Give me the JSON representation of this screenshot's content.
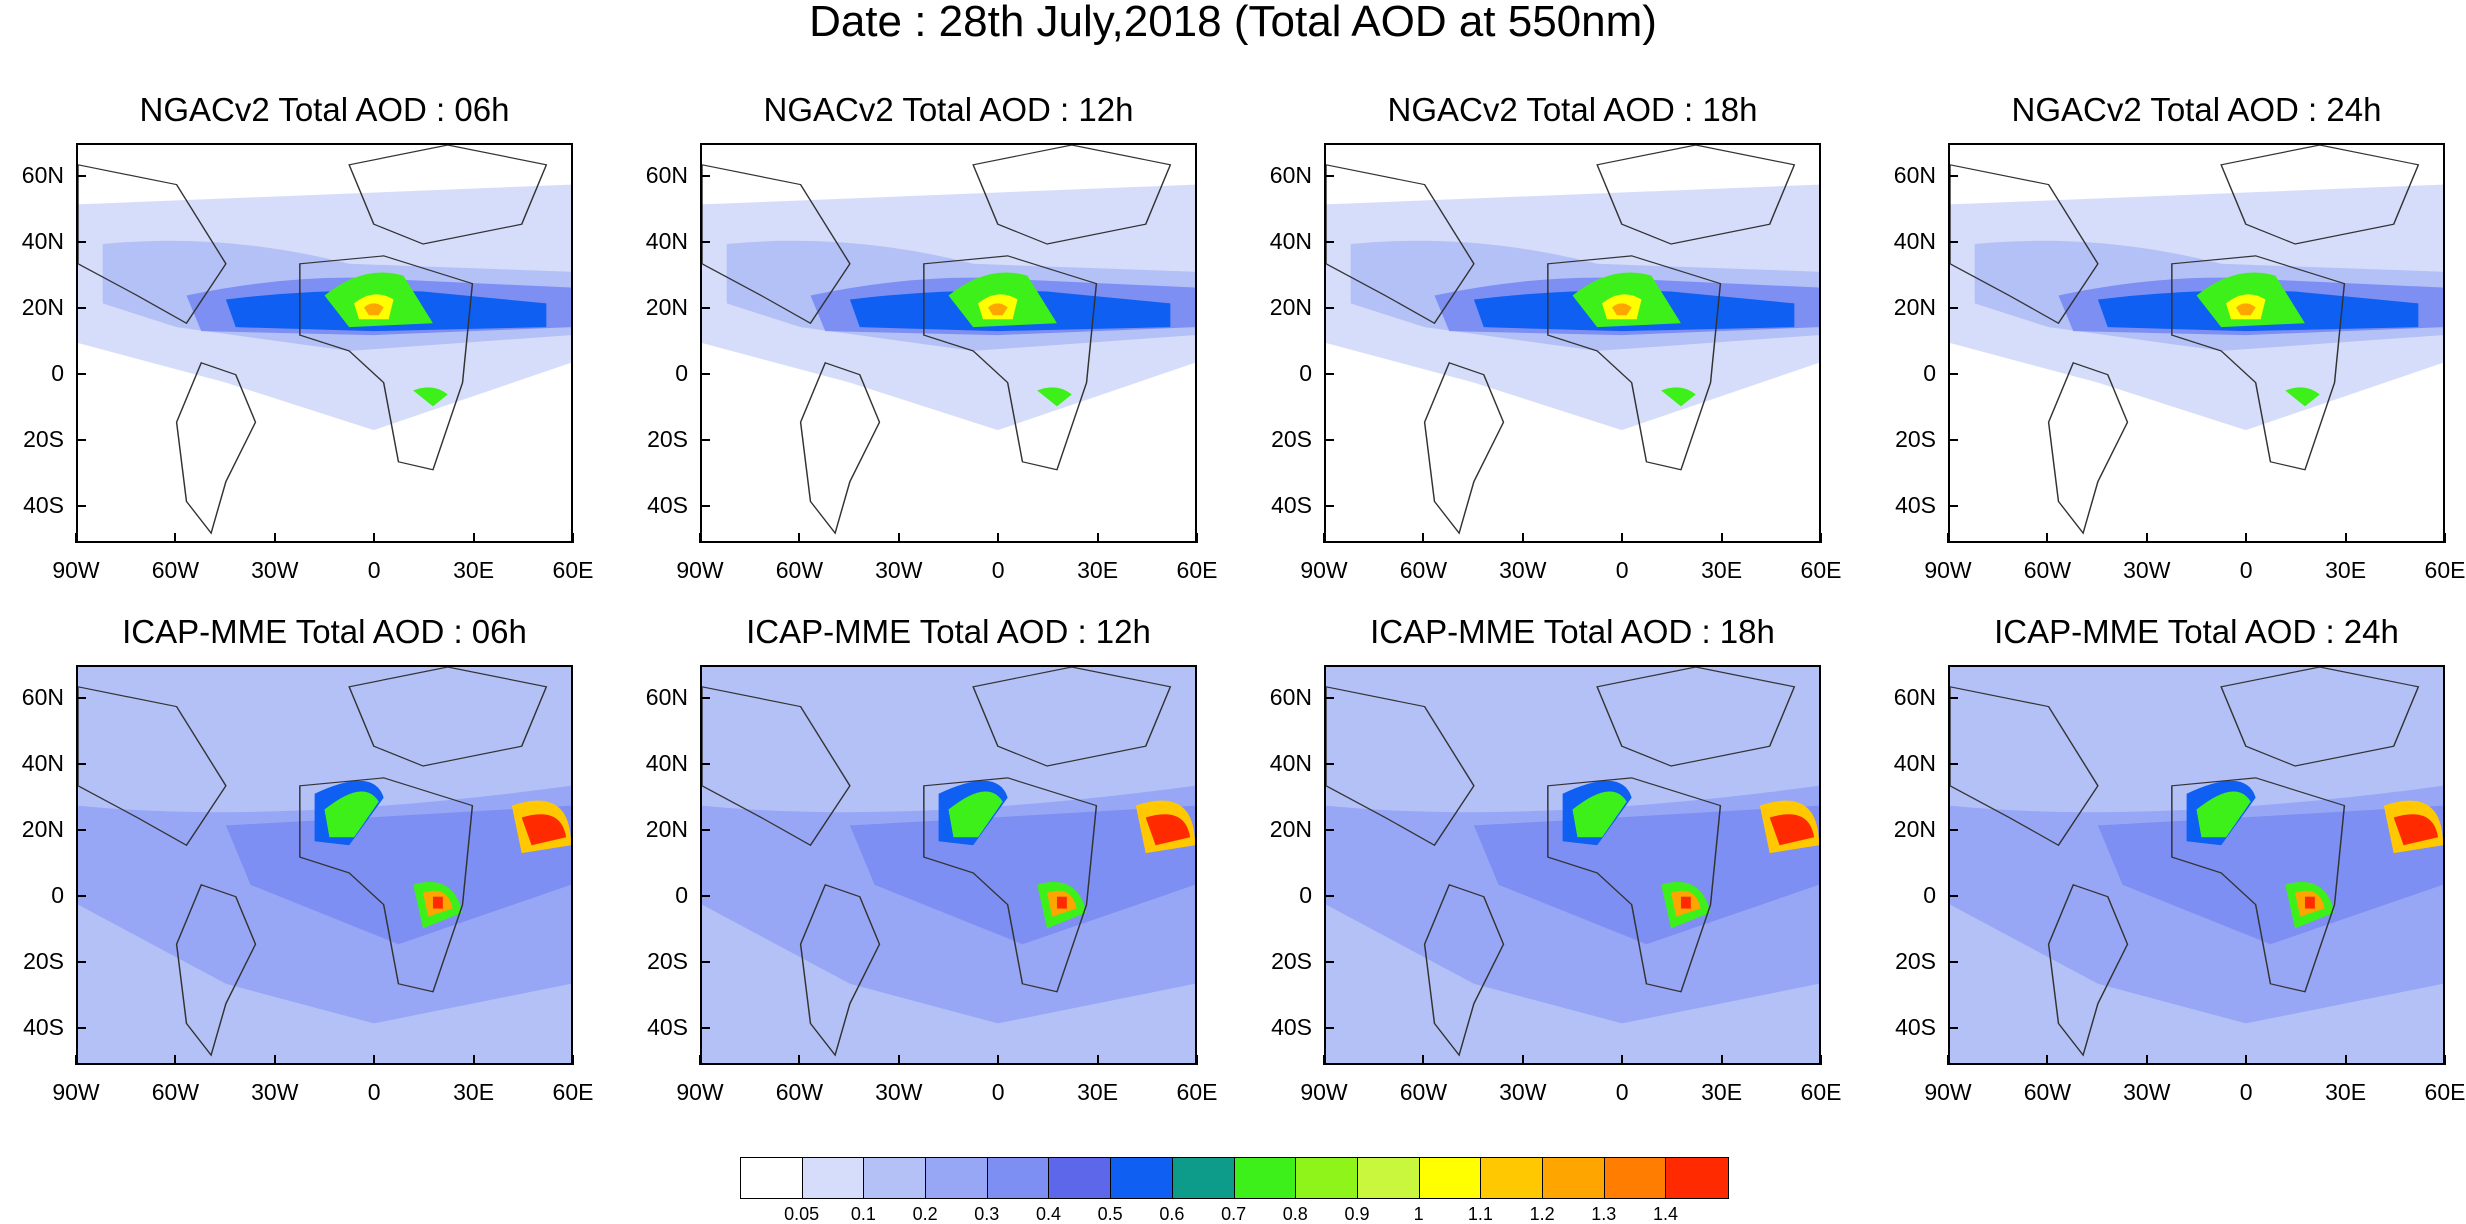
{
  "title": "Date : 28th July,2018 (Total AOD at 550nm)",
  "lat_labels": [
    "60N",
    "40N",
    "20N",
    "0",
    "20S",
    "40S"
  ],
  "lon_labels": [
    "90W",
    "60W",
    "30W",
    "0",
    "30E",
    "60E"
  ],
  "panels": [
    {
      "title": "NGACv2 Total AOD : 06h",
      "model": "NGACv2"
    },
    {
      "title": "NGACv2 Total AOD : 12h",
      "model": "NGACv2"
    },
    {
      "title": "NGACv2 Total AOD : 18h",
      "model": "NGACv2"
    },
    {
      "title": "NGACv2 Total AOD : 24h",
      "model": "NGACv2"
    },
    {
      "title": "ICAP-MME Total AOD : 06h",
      "model": "ICAP"
    },
    {
      "title": "ICAP-MME Total AOD : 12h",
      "model": "ICAP"
    },
    {
      "title": "ICAP-MME Total AOD : 18h",
      "model": "ICAP"
    },
    {
      "title": "ICAP-MME Total AOD : 24h",
      "model": "ICAP"
    }
  ],
  "colorbar": {
    "labels": [
      "0.05",
      "0.1",
      "0.2",
      "0.3",
      "0.4",
      "0.5",
      "0.6",
      "0.7",
      "0.8",
      "0.9",
      "1",
      "1.1",
      "1.2",
      "1.3",
      "1.4"
    ],
    "colors": [
      "#ffffff",
      "#d6ddfa",
      "#b4c1f7",
      "#97a7f5",
      "#7d8ff2",
      "#5c67ea",
      "#0e5ff2",
      "#0d9b8a",
      "#3ef01a",
      "#8ff41a",
      "#c9f73e",
      "#ffff00",
      "#ffc800",
      "#ffa500",
      "#ff7d00",
      "#ff2a00"
    ]
  }
}
